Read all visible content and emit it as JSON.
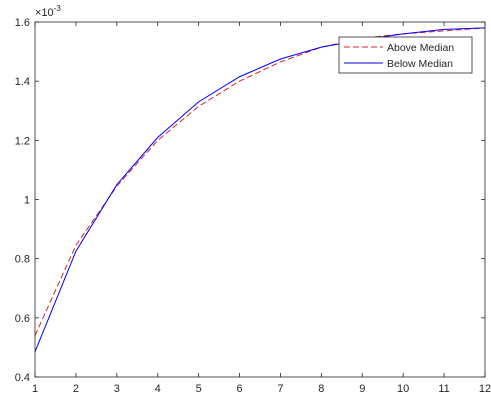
{
  "chart_data": {
    "type": "line",
    "title": "",
    "xlabel": "",
    "ylabel": "",
    "x": [
      1,
      2,
      3,
      4,
      5,
      6,
      7,
      8,
      9,
      10,
      11,
      12
    ],
    "xlim": [
      1,
      12
    ],
    "ylim": [
      0.0004,
      0.0016
    ],
    "y_exponent_label": "×10",
    "y_exponent_power": "-3",
    "x_ticks": [
      1,
      2,
      3,
      4,
      5,
      6,
      7,
      8,
      9,
      10,
      11,
      12
    ],
    "y_ticks": [
      0.0004,
      0.0006,
      0.0008,
      0.001,
      0.0012,
      0.0014,
      0.0016
    ],
    "y_tick_labels": [
      "0.4",
      "0.6",
      "0.8",
      "1",
      "1.2",
      "1.4",
      "1.6"
    ],
    "x_tick_labels": [
      "1",
      "2",
      "3",
      "4",
      "5",
      "6",
      "7",
      "8",
      "9",
      "10",
      "11",
      "12"
    ],
    "grid": false,
    "legend_position": "top-right",
    "series": [
      {
        "name": "Above Median",
        "color": "#d62728",
        "style": "dashed",
        "values": [
          0.00054,
          0.000845,
          0.001045,
          0.0012,
          0.001315,
          0.0014,
          0.001465,
          0.001515,
          0.001545,
          0.00156,
          0.00157,
          0.00158
        ]
      },
      {
        "name": "Below Median",
        "color": "#0000ff",
        "style": "solid",
        "values": [
          0.000485,
          0.000825,
          0.00105,
          0.00121,
          0.00133,
          0.001415,
          0.001475,
          0.001515,
          0.00154,
          0.00156,
          0.001575,
          0.00158
        ]
      }
    ]
  }
}
